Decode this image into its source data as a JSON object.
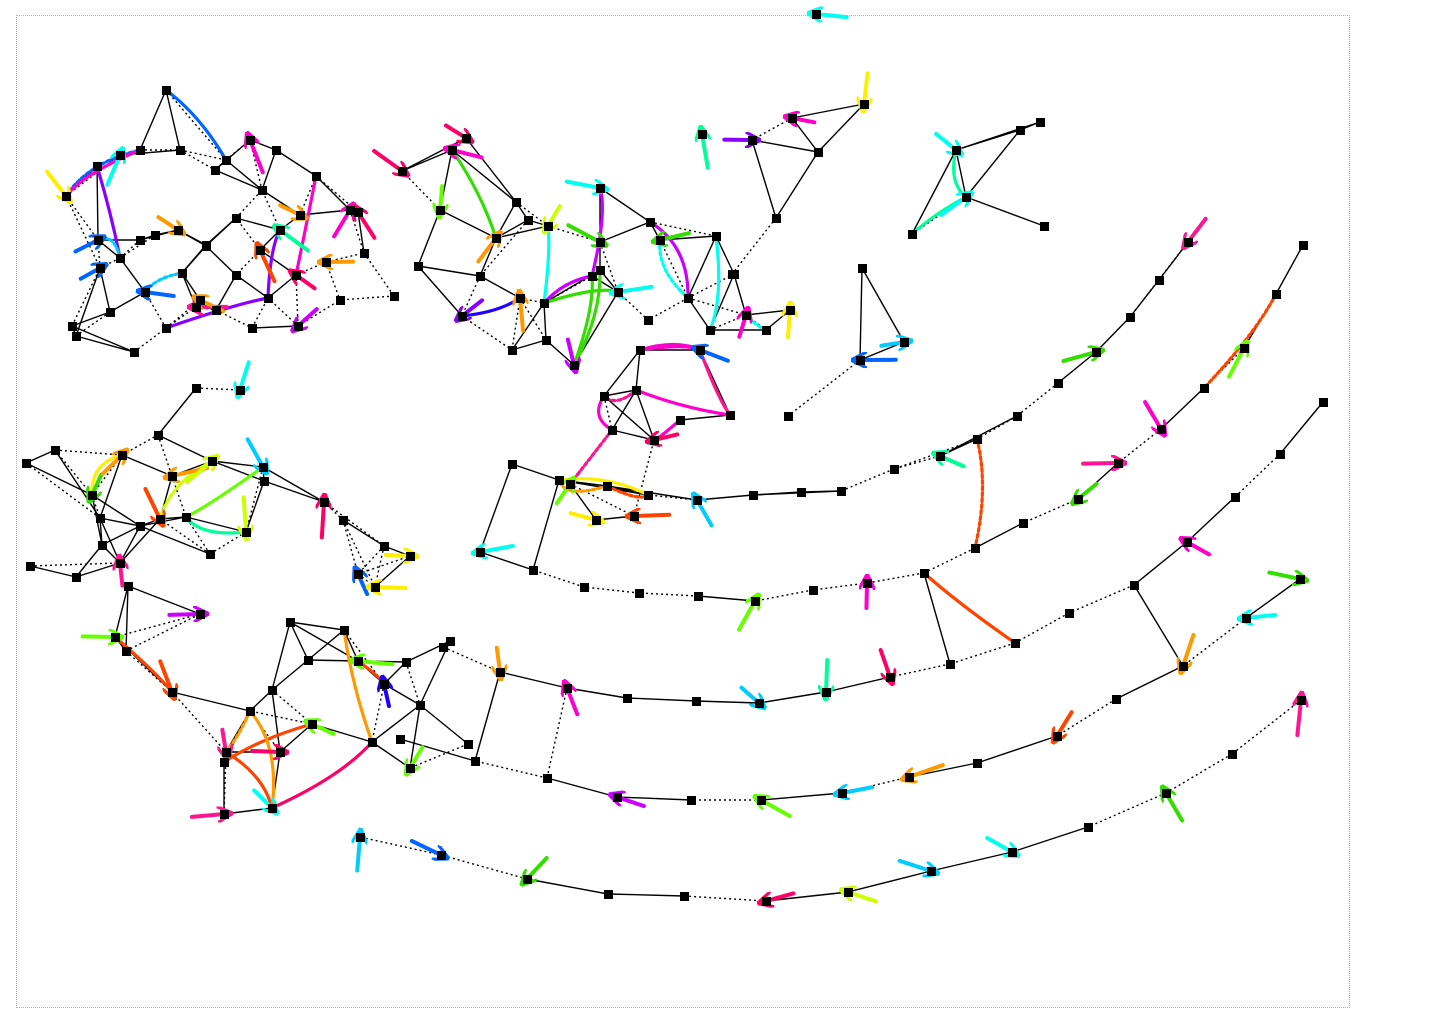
{
  "diagram": {
    "kind": "triangle-mesh-with-arrow-flows",
    "node_marker": "black-square",
    "mesh_edge_color": "#000000",
    "mesh_edge_styles": [
      "solid",
      "dotted"
    ],
    "palette": [
      "#ff00cc",
      "#8800ff",
      "#0066ff",
      "#00ccff",
      "#00ff99",
      "#66ff00",
      "#ccff00",
      "#ffee00",
      "#ff9900",
      "#ff4400",
      "#ff0066",
      "#2200ff",
      "#00ffee",
      "#33dd00",
      "#cc00ff",
      "#ff1493"
    ],
    "regions": [
      "upper-left-cluster",
      "left-wing",
      "lower-left-cluster",
      "top-center-band",
      "center-pendant",
      "upper-right-arc",
      "lower-right-arc"
    ]
  }
}
